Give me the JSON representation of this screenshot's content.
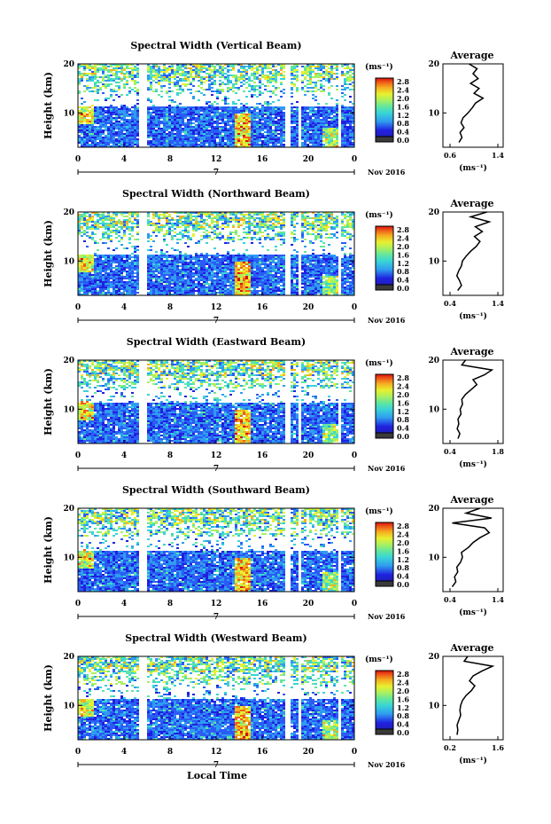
{
  "colors": {
    "scale": [
      "#3a3a3a",
      "#1e1e9e",
      "#2020e0",
      "#2a5cf5",
      "#2f9cf0",
      "#38d4d8",
      "#60e6a0",
      "#a8f060",
      "#e8f030",
      "#f4b020",
      "#f06018",
      "#d81010"
    ],
    "line": "#000000"
  },
  "shared": {
    "xlabel": "Local Time",
    "date_label": "Nov 2016",
    "date_day": "7",
    "ylabel": "Height (km)",
    "unit_label": "(ms⁻¹)",
    "avg_title": "Average",
    "avg_xlabel": "(ms⁻¹)",
    "x_ticks": [
      "0",
      "4",
      "8",
      "12",
      "16",
      "20",
      "0"
    ],
    "y_ticks": [
      "20",
      "10"
    ],
    "colorbar_ticks": [
      "2.8",
      "2.4",
      "2.0",
      "1.6",
      "1.2",
      "0.8",
      "0.4",
      "0.0"
    ]
  },
  "chart_data": [
    {
      "type": "heatmap",
      "title": "Spectral Width (Vertical Beam)",
      "xlabel": "Local Time",
      "ylabel": "Height (km)",
      "xlim": [
        0,
        24
      ],
      "ylim": [
        3,
        20
      ],
      "gaps_hours": [
        [
          5.3,
          5.9
        ],
        [
          17.8,
          18.3
        ],
        [
          19.0,
          19.3
        ],
        [
          22.5,
          22.7
        ]
      ],
      "profile": {
        "title": "Average",
        "xlabel": "(ms⁻¹)",
        "x_ticks": [
          "0.6",
          "1.4"
        ],
        "xlim": [
          0.4,
          1.6
        ],
        "heights": [
          4,
          5,
          6,
          7,
          8,
          9,
          10,
          11,
          12,
          13,
          14,
          15,
          16,
          17,
          18,
          19,
          20
        ],
        "values": [
          0.72,
          0.78,
          0.74,
          0.82,
          0.76,
          0.8,
          0.9,
          0.98,
          1.05,
          1.2,
          1.02,
          1.12,
          0.95,
          1.1,
          1.0,
          1.08,
          0.92
        ]
      }
    },
    {
      "type": "heatmap",
      "title": "Spectral Width (Northward Beam)",
      "xlabel": "Local Time",
      "ylabel": "Height (km)",
      "xlim": [
        0,
        24
      ],
      "ylim": [
        3,
        20
      ],
      "gaps_hours": [
        [
          5.3,
          5.9
        ],
        [
          17.8,
          18.3
        ],
        [
          19.0,
          19.3
        ],
        [
          22.5,
          22.7
        ]
      ],
      "profile": {
        "title": "Average",
        "xlabel": "(ms⁻¹)",
        "x_ticks": [
          "0.4",
          "1.4"
        ],
        "xlim": [
          0.3,
          1.6
        ],
        "heights": [
          4,
          5,
          6,
          7,
          8,
          9,
          10,
          11,
          12,
          13,
          14,
          15,
          16,
          17,
          18,
          19,
          20
        ],
        "values": [
          0.62,
          0.7,
          0.66,
          0.6,
          0.64,
          0.7,
          0.72,
          0.8,
          0.9,
          1.02,
          1.1,
          0.98,
          1.15,
          1.0,
          1.3,
          0.9,
          1.25
        ]
      }
    },
    {
      "type": "heatmap",
      "title": "Spectral Width (Eastward Beam)",
      "xlabel": "Local Time",
      "ylabel": "Height (km)",
      "xlim": [
        0,
        24
      ],
      "ylim": [
        3,
        20
      ],
      "gaps_hours": [
        [
          5.3,
          5.9
        ],
        [
          17.8,
          18.3
        ],
        [
          19.0,
          19.3
        ],
        [
          22.5,
          22.7
        ]
      ],
      "profile": {
        "title": "Average",
        "xlabel": "(ms⁻¹)",
        "x_ticks": [
          "0.4",
          "1.8"
        ],
        "xlim": [
          0.3,
          1.9
        ],
        "heights": [
          4,
          5,
          6,
          7,
          8,
          9,
          10,
          11,
          12,
          13,
          14,
          15,
          16,
          17,
          18,
          19,
          20
        ],
        "values": [
          0.7,
          0.75,
          0.68,
          0.72,
          0.7,
          0.78,
          0.76,
          0.82,
          0.8,
          0.9,
          1.05,
          1.2,
          1.1,
          1.4,
          1.6,
          0.8,
          0.9
        ]
      }
    },
    {
      "type": "heatmap",
      "title": "Spectral Width (Southward Beam)",
      "xlabel": "Local Time",
      "ylabel": "Height (km)",
      "xlim": [
        0,
        24
      ],
      "ylim": [
        3,
        20
      ],
      "gaps_hours": [
        [
          5.3,
          5.9
        ],
        [
          17.8,
          18.3
        ],
        [
          19.0,
          19.3
        ],
        [
          22.5,
          22.7
        ]
      ],
      "profile": {
        "title": "Average",
        "xlabel": "(ms⁻¹)",
        "x_ticks": [
          "0.4",
          "1.4"
        ],
        "xlim": [
          0.3,
          1.6
        ],
        "heights": [
          4,
          5,
          6,
          7,
          8,
          9,
          10,
          11,
          12,
          13,
          14,
          15,
          16,
          17,
          18,
          19,
          20
        ],
        "values": [
          0.5,
          0.58,
          0.55,
          0.62,
          0.6,
          0.68,
          0.72,
          0.7,
          0.85,
          0.95,
          1.1,
          1.3,
          1.2,
          0.5,
          1.35,
          0.8,
          1.1
        ]
      }
    },
    {
      "type": "heatmap",
      "title": "Spectral Width (Westward Beam)",
      "xlabel": "Local Time",
      "ylabel": "Height (km)",
      "xlim": [
        0,
        24
      ],
      "ylim": [
        3,
        20
      ],
      "gaps_hours": [
        [
          5.3,
          5.9
        ],
        [
          17.8,
          18.3
        ],
        [
          19.0,
          19.3
        ],
        [
          22.5,
          22.7
        ]
      ],
      "profile": {
        "title": "Average",
        "xlabel": "(ms⁻¹)",
        "x_ticks": [
          "0.2",
          "1.6"
        ],
        "xlim": [
          0.1,
          1.8
        ],
        "heights": [
          4,
          5,
          6,
          7,
          8,
          9,
          10,
          11,
          12,
          13,
          14,
          15,
          16,
          17,
          18,
          19,
          20
        ],
        "values": [
          0.5,
          0.52,
          0.5,
          0.55,
          0.6,
          0.58,
          0.6,
          0.65,
          0.75,
          0.9,
          1.0,
          0.85,
          0.95,
          1.2,
          1.5,
          0.7,
          0.8
        ]
      }
    }
  ]
}
